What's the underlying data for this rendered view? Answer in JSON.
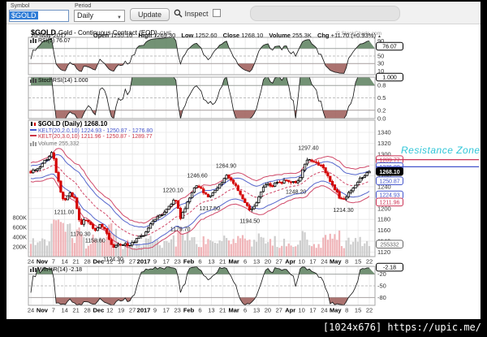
{
  "toolbar": {
    "symbol_label": "Symbol",
    "symbol_value": "$GOLD",
    "period_label": "Period",
    "period_value": "Daily",
    "update_label": "Update",
    "inspect_label": "Inspect"
  },
  "header": {
    "symbol": "$GOLD",
    "desc": "Gold - Continuous Contract (EOD)",
    "exchange": "CME",
    "copyright": "© StockCharts.com",
    "date": "26-May-2017",
    "labels": {
      "open": "Open",
      "high": "High",
      "low": "Low",
      "close": "Close",
      "volume": "Volume",
      "chg": "Chg"
    },
    "values": {
      "open": "1255.10",
      "high": "1269.30",
      "low": "1252.60",
      "close": "1268.10",
      "volume": "255.3K",
      "chg": "+11.70 (+0.93%)"
    },
    "chg_arrow": "▲"
  },
  "legends": {
    "rsi": "RSI(5) 76.07",
    "stochrsi": "StochRSI(14) 1.000",
    "main_title": "$GOLD (Daily) 1268.10",
    "kelt1": "KELT(20,2.0,10) 1224.93 - 1250.87 - 1276.80",
    "kelt2": "KELT(20,3.0,10) 1211.96 - 1250.87 - 1289.77",
    "volume": "Volume 255,332",
    "wmr": "Wm%R(14) -2.18"
  },
  "watermark": "[1024x676] https://upic.me/",
  "chart_data": {
    "type": "candlestick",
    "title": "$GOLD (Daily)",
    "last_close": 1268.1,
    "x_ticks": [
      {
        "label": "24",
        "bold": false
      },
      {
        "label": "Nov",
        "bold": true
      },
      {
        "label": "7",
        "bold": false
      },
      {
        "label": "14",
        "bold": false
      },
      {
        "label": "21",
        "bold": false
      },
      {
        "label": "28",
        "bold": false
      },
      {
        "label": "Dec",
        "bold": true
      },
      {
        "label": "12",
        "bold": false
      },
      {
        "label": "19",
        "bold": false
      },
      {
        "label": "27",
        "bold": false
      },
      {
        "label": "2017",
        "bold": true
      },
      {
        "label": "9",
        "bold": false
      },
      {
        "label": "17",
        "bold": false
      },
      {
        "label": "23",
        "bold": false
      },
      {
        "label": "Feb",
        "bold": true
      },
      {
        "label": "6",
        "bold": false
      },
      {
        "label": "13",
        "bold": false
      },
      {
        "label": "21",
        "bold": false
      },
      {
        "label": "Mar",
        "bold": true
      },
      {
        "label": "6",
        "bold": false
      },
      {
        "label": "13",
        "bold": false
      },
      {
        "label": "20",
        "bold": false
      },
      {
        "label": "27",
        "bold": false
      },
      {
        "label": "Apr",
        "bold": true
      },
      {
        "label": "10",
        "bold": false
      },
      {
        "label": "17",
        "bold": false
      },
      {
        "label": "24",
        "bold": false
      },
      {
        "label": "May",
        "bold": true
      },
      {
        "label": "8",
        "bold": false
      },
      {
        "label": "15",
        "bold": false
      },
      {
        "label": "22",
        "bold": false
      }
    ],
    "price_path": [
      [
        0,
        1267
      ],
      [
        0.5,
        1272
      ],
      [
        1.0,
        1282
      ],
      [
        1.5,
        1292
      ],
      [
        1.9,
        1306
      ],
      [
        2.1,
        1284
      ],
      [
        2.4,
        1252
      ],
      [
        2.7,
        1228
      ],
      [
        2.95,
        1212
      ],
      [
        3.2,
        1222
      ],
      [
        3.5,
        1228
      ],
      [
        3.9,
        1217
      ],
      [
        4.4,
        1171
      ],
      [
        4.8,
        1180
      ],
      [
        5.3,
        1172
      ],
      [
        5.7,
        1159
      ],
      [
        6.1,
        1170
      ],
      [
        6.5,
        1163
      ],
      [
        6.9,
        1145
      ],
      [
        7.3,
        1125
      ],
      [
        7.6,
        1135
      ],
      [
        7.9,
        1130
      ],
      [
        8.3,
        1137
      ],
      [
        8.7,
        1132
      ],
      [
        9.2,
        1140
      ],
      [
        9.6,
        1148
      ],
      [
        10.0,
        1152
      ],
      [
        10.4,
        1163
      ],
      [
        10.8,
        1176
      ],
      [
        11.3,
        1186
      ],
      [
        11.8,
        1192
      ],
      [
        12.2,
        1202
      ],
      [
        12.6,
        1215
      ],
      [
        12.9,
        1212
      ],
      [
        13.25,
        1183
      ],
      [
        13.6,
        1196
      ],
      [
        14.0,
        1216
      ],
      [
        14.4,
        1234
      ],
      [
        14.75,
        1244
      ],
      [
        15.1,
        1236
      ],
      [
        15.5,
        1226
      ],
      [
        15.85,
        1220
      ],
      [
        16.2,
        1230
      ],
      [
        16.6,
        1240
      ],
      [
        17.0,
        1251
      ],
      [
        17.3,
        1262
      ],
      [
        17.7,
        1253
      ],
      [
        18.1,
        1243
      ],
      [
        18.5,
        1230
      ],
      [
        18.9,
        1215
      ],
      [
        19.4,
        1198
      ],
      [
        19.8,
        1203
      ],
      [
        20.2,
        1222
      ],
      [
        20.6,
        1237
      ],
      [
        21.0,
        1247
      ],
      [
        21.4,
        1241
      ],
      [
        21.8,
        1250
      ],
      [
        22.2,
        1246
      ],
      [
        22.6,
        1253
      ],
      [
        23.0,
        1249
      ],
      [
        23.5,
        1247
      ],
      [
        23.9,
        1260
      ],
      [
        24.3,
        1280
      ],
      [
        24.6,
        1292
      ],
      [
        24.9,
        1288
      ],
      [
        25.3,
        1284
      ],
      [
        25.7,
        1280
      ],
      [
        26.1,
        1268
      ],
      [
        26.5,
        1253
      ],
      [
        26.9,
        1238
      ],
      [
        27.3,
        1222
      ],
      [
        27.7,
        1214
      ],
      [
        28.0,
        1224
      ],
      [
        28.4,
        1233
      ],
      [
        28.7,
        1240
      ],
      [
        29.0,
        1250
      ],
      [
        29.3,
        1257
      ],
      [
        29.6,
        1261
      ],
      [
        30,
        1268.1
      ]
    ],
    "annotations": [
      {
        "t": 2.95,
        "p": 1211.0,
        "label": "1211.00",
        "pos": "below"
      },
      {
        "t": 4.4,
        "p": 1170.3,
        "label": "1170.30",
        "pos": "below"
      },
      {
        "t": 5.7,
        "p": 1158.6,
        "label": "1158.60",
        "pos": "below"
      },
      {
        "t": 7.3,
        "p": 1124.3,
        "label": "1124.30",
        "pos": "below"
      },
      {
        "t": 12.6,
        "p": 1220.1,
        "label": "1220.10",
        "pos": "above"
      },
      {
        "t": 13.25,
        "p": 1179.7,
        "label": "1179.70",
        "pos": "below"
      },
      {
        "t": 14.75,
        "p": 1246.6,
        "label": "1246.60",
        "pos": "above"
      },
      {
        "t": 15.85,
        "p": 1217.5,
        "label": "1217.50",
        "pos": "below"
      },
      {
        "t": 17.3,
        "p": 1264.9,
        "label": "1264.90",
        "pos": "above"
      },
      {
        "t": 19.4,
        "p": 1194.5,
        "label": "1194.50",
        "pos": "below"
      },
      {
        "t": 23.5,
        "p": 1248.2,
        "label": "1248.20",
        "pos": "below"
      },
      {
        "t": 24.6,
        "p": 1297.4,
        "label": "1297.40",
        "pos": "above"
      },
      {
        "t": 27.7,
        "p": 1214.3,
        "label": "1214.30",
        "pos": "below"
      }
    ],
    "panels": {
      "rsi": {
        "label": "RSI(5) 76.07",
        "value": 76.07,
        "badge": "76.07",
        "yticks": [
          90,
          50,
          30,
          10
        ],
        "upper": 70,
        "lower": 30,
        "mid": 50
      },
      "stochrsi": {
        "label": "StochRSI(14) 1.000",
        "value": 1.0,
        "badge": "1.000",
        "yticks": [
          "0.8",
          "0.5",
          "0.2",
          "0.0"
        ],
        "upper": 0.8,
        "lower": 0.2,
        "mid": 0.5
      },
      "wmr": {
        "label": "Wm%R(14) -2.18",
        "value": -2.18,
        "badge": "-2.18",
        "yticks": [
          -20,
          -50,
          -80
        ],
        "upper": -20,
        "lower": -80,
        "mid": -50
      },
      "price": {
        "yticks": [
          1340,
          1320,
          1300,
          1260,
          1240,
          1200,
          1180,
          1160,
          1140,
          1120
        ],
        "grid": [
          1340,
          1320,
          1300,
          1280,
          1260,
          1240,
          1220,
          1200,
          1180,
          1160,
          1140,
          1120
        ],
        "badges": [
          {
            "v": 1289.77,
            "label": "1289.77",
            "color": "#cc3355"
          },
          {
            "v": 1276.8,
            "label": "1276.80",
            "color": "#4455cc"
          },
          {
            "v": 1268.1,
            "label": "1268.10",
            "color": "#000000",
            "invert": true
          },
          {
            "v": 1250.87,
            "label": "1250.87",
            "color": "#4455cc"
          },
          {
            "v": 1224.93,
            "label": "1224.93",
            "color": "#4455cc"
          },
          {
            "v": 1211.96,
            "label": "1211.96",
            "color": "#cc3355"
          }
        ],
        "vol_ticks": [
          {
            "v": 800,
            "label": "800K"
          },
          {
            "v": 600,
            "label": "600K"
          },
          {
            "v": 400,
            "label": "400K"
          },
          {
            "v": 200,
            "label": "200K"
          }
        ],
        "vol_badge": {
          "v": 255.332,
          "label": "255332"
        },
        "resistance": {
          "label": "Resistance Zone",
          "lines": [
            {
              "v": 1289.77,
              "color": "#cc3355"
            },
            {
              "v": 1276.8,
              "color": "#4455cc"
            }
          ]
        }
      }
    },
    "colors": {
      "up": "#000000",
      "down": "#d40000",
      "inner_band": "#5566cc",
      "outer_band": "#d04868",
      "vol_up": "#cdcdcd",
      "vol_down": "#f0b4b8",
      "fill_hi": "#5a7f5d",
      "fill_lo": "#9c5b57"
    }
  }
}
